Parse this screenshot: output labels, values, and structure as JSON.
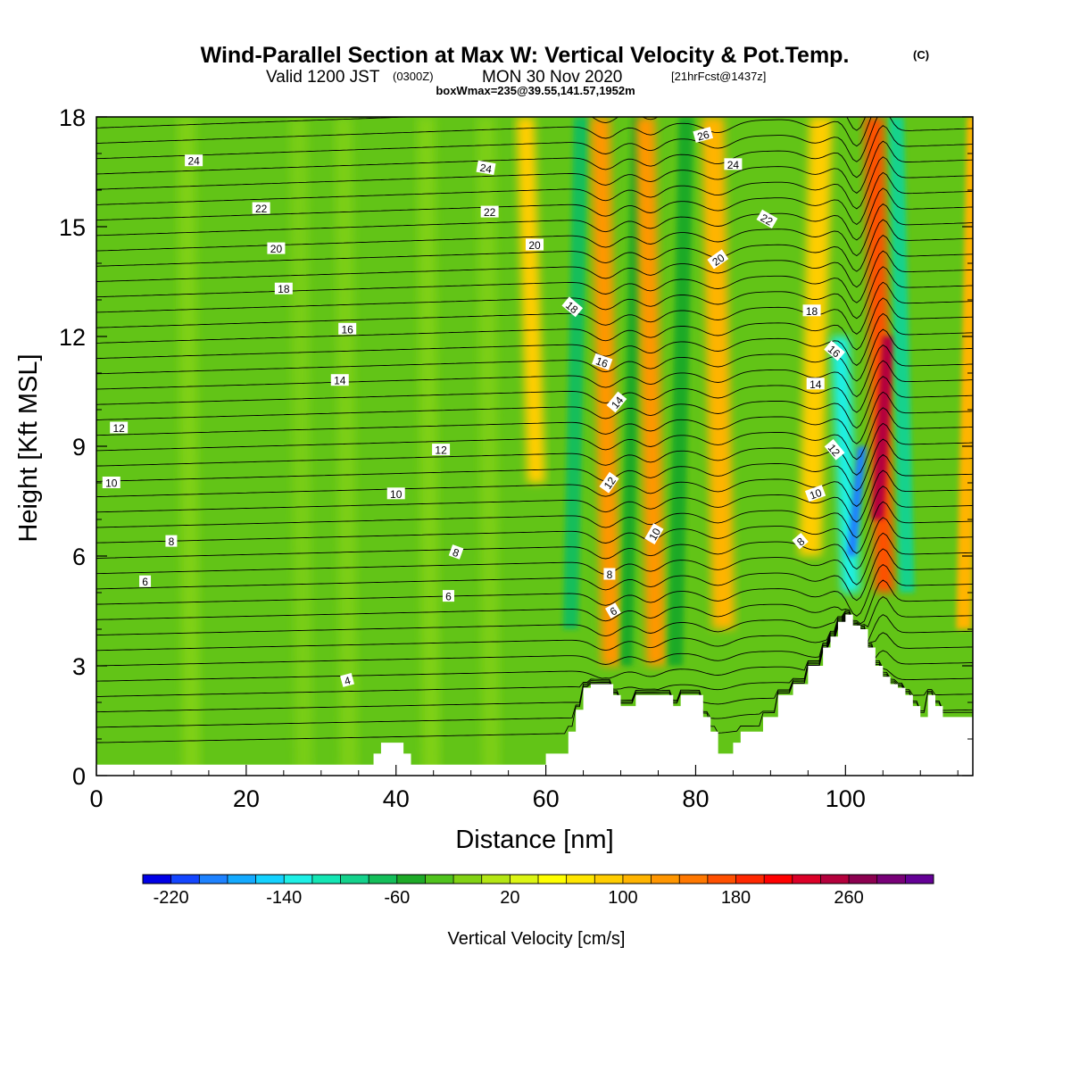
{
  "title": {
    "main": "Wind-Parallel Section at Max W: Vertical Velocity & Pot.Temp.",
    "copyright": "(C)",
    "valid_prefix": "Valid 1200 JST",
    "valid_utc": "(0300Z)",
    "valid_date": "MON 30 Nov 2020",
    "forecast_info": "[21hrFcst@1437z]",
    "boxwmax": "boxWmax=235@39.55,141.57,1952m"
  },
  "colors": {
    "terrain": "#ffffff",
    "contour": "#000000",
    "background_field": "#62c417"
  },
  "chart_data": {
    "type": "heatmap",
    "xlabel": "Distance [nm]",
    "ylabel": "Height [Kft MSL]",
    "xlim": [
      0,
      117
    ],
    "ylim": [
      0,
      18
    ],
    "x_ticks": [
      0,
      20,
      40,
      60,
      80,
      100
    ],
    "y_ticks": [
      0,
      3,
      6,
      9,
      12,
      15,
      18
    ],
    "grid": false,
    "colorbar": {
      "label": "Vertical Velocity [cm/s]",
      "placement": "bottom",
      "tick_labels": [
        "-220",
        "-140",
        "-60",
        "20",
        "100",
        "180",
        "260"
      ],
      "colors": [
        "#0000e6",
        "#1446ff",
        "#1e82ff",
        "#14aaff",
        "#14d2ff",
        "#1ef0e6",
        "#14e6b4",
        "#14d28c",
        "#14be5a",
        "#1eaa28",
        "#50c31e",
        "#82d214",
        "#b4e614",
        "#dcf514",
        "#ffff00",
        "#ffe600",
        "#ffcd00",
        "#ffb400",
        "#ff9600",
        "#ff7800",
        "#ff5000",
        "#ff2800",
        "#ff0000",
        "#dc0028",
        "#b4003c",
        "#8c0050",
        "#780078",
        "#640096"
      ]
    },
    "max_w_cm_s": 235,
    "max_w_location": [
      39.55,
      141.57
    ],
    "max_w_height_m": 1952,
    "theta_contour_labels": [
      4,
      6,
      8,
      10,
      12,
      14,
      16,
      18,
      20,
      22,
      24,
      26
    ],
    "terrain_profile": {
      "x": [
        0,
        35,
        37,
        38,
        41,
        42,
        59,
        60,
        63,
        64,
        65,
        66,
        67,
        69,
        70,
        71,
        72,
        74,
        75,
        77,
        78,
        81,
        82,
        83,
        84,
        85,
        86,
        89,
        91,
        93,
        95,
        97,
        98,
        99,
        100,
        101,
        102,
        103,
        104,
        105,
        106,
        107,
        108,
        109,
        110,
        111,
        112,
        113,
        117
      ],
      "y": [
        0.3,
        0.3,
        0.6,
        0.9,
        0.6,
        0.3,
        0.3,
        0.6,
        1.2,
        1.8,
        2.4,
        2.5,
        2.5,
        2.2,
        1.9,
        1.9,
        2.2,
        2.2,
        2.2,
        1.9,
        2.2,
        1.6,
        1.2,
        0.6,
        0.6,
        0.9,
        1.2,
        1.6,
        2.2,
        2.5,
        3.0,
        3.5,
        3.8,
        4.2,
        4.4,
        4.1,
        4.0,
        3.5,
        3.0,
        2.7,
        2.5,
        2.4,
        2.2,
        1.9,
        1.6,
        2.2,
        1.9,
        1.6,
        1.6
      ]
    },
    "w_features": [
      {
        "x": 58,
        "y0": 8,
        "y1": 18,
        "w": 1.2,
        "value": 70
      },
      {
        "x": 64,
        "y0": 4,
        "y1": 18,
        "w": 1.0,
        "value": -90
      },
      {
        "x": 68,
        "y0": 3,
        "y1": 18,
        "w": 1.3,
        "value": 110
      },
      {
        "x": 71.5,
        "y0": 3,
        "y1": 18,
        "w": 0.8,
        "value": -80
      },
      {
        "x": 74,
        "y0": 3,
        "y1": 18,
        "w": 1.3,
        "value": 110
      },
      {
        "x": 78,
        "y0": 3,
        "y1": 18,
        "w": 1.0,
        "value": -70
      },
      {
        "x": 83,
        "y0": 4,
        "y1": 18,
        "w": 1.5,
        "value": 90
      },
      {
        "x": 96,
        "y0": 6,
        "y1": 18,
        "w": 1.5,
        "value": 60
      },
      {
        "x": 100,
        "y0": 5,
        "y1": 12,
        "w": 1.2,
        "value": -150
      },
      {
        "x": 101.5,
        "y0": 6,
        "y1": 9,
        "w": 0.6,
        "value": -210
      },
      {
        "x": 104.5,
        "y0": 5,
        "y1": 18,
        "w": 1.3,
        "value": 150
      },
      {
        "x": 105,
        "y0": 7,
        "y1": 12,
        "w": 0.8,
        "value": 235
      },
      {
        "x": 107.5,
        "y0": 5,
        "y1": 18,
        "w": 1.0,
        "value": -110
      },
      {
        "x": 116.5,
        "y0": 4,
        "y1": 18,
        "w": 1.0,
        "value": 90
      }
    ],
    "theta_label_positions": [
      {
        "label": "24",
        "x": 13,
        "y": 16.8
      },
      {
        "label": "24",
        "x": 52,
        "y": 16.6,
        "rot": 10
      },
      {
        "label": "26",
        "x": 81,
        "y": 17.5,
        "rot": -15
      },
      {
        "label": "24",
        "x": 85,
        "y": 16.7
      },
      {
        "label": "22",
        "x": 22,
        "y": 15.5
      },
      {
        "label": "22",
        "x": 52.5,
        "y": 15.4
      },
      {
        "label": "22",
        "x": 89.5,
        "y": 15.2,
        "rot": 30
      },
      {
        "label": "20",
        "x": 24,
        "y": 14.4
      },
      {
        "label": "20",
        "x": 58.5,
        "y": 14.5
      },
      {
        "label": "20",
        "x": 83,
        "y": 14.1,
        "rot": -35
      },
      {
        "label": "18",
        "x": 25,
        "y": 13.3
      },
      {
        "label": "18",
        "x": 63.5,
        "y": 12.8,
        "rot": 40
      },
      {
        "label": "18",
        "x": 95.5,
        "y": 12.7
      },
      {
        "label": "16",
        "x": 33.5,
        "y": 12.2
      },
      {
        "label": "16",
        "x": 67.5,
        "y": 11.3,
        "rot": 20
      },
      {
        "label": "16",
        "x": 98.5,
        "y": 11.6,
        "rot": 40
      },
      {
        "label": "14",
        "x": 32.5,
        "y": 10.8
      },
      {
        "label": "14",
        "x": 69.5,
        "y": 10.2,
        "rot": -50
      },
      {
        "label": "14",
        "x": 96,
        "y": 10.7
      },
      {
        "label": "12",
        "x": 3,
        "y": 9.5
      },
      {
        "label": "12",
        "x": 46,
        "y": 8.9
      },
      {
        "label": "12",
        "x": 68.5,
        "y": 8.0,
        "rot": -55
      },
      {
        "label": "12",
        "x": 98.5,
        "y": 8.9,
        "rot": 50
      },
      {
        "label": "10",
        "x": 2,
        "y": 8.0
      },
      {
        "label": "10",
        "x": 40,
        "y": 7.7
      },
      {
        "label": "10",
        "x": 74.5,
        "y": 6.6,
        "rot": -60
      },
      {
        "label": "10",
        "x": 96,
        "y": 7.7,
        "rot": -20
      },
      {
        "label": "8",
        "x": 10,
        "y": 6.4
      },
      {
        "label": "8",
        "x": 48,
        "y": 6.1,
        "rot": 20
      },
      {
        "label": "8",
        "x": 68.5,
        "y": 5.5
      },
      {
        "label": "8",
        "x": 94,
        "y": 6.4,
        "rot": -40
      },
      {
        "label": "6",
        "x": 6.5,
        "y": 5.3
      },
      {
        "label": "6",
        "x": 47,
        "y": 4.9
      },
      {
        "label": "6",
        "x": 69,
        "y": 4.5,
        "rot": -30
      },
      {
        "label": "4",
        "x": 33.5,
        "y": 2.6,
        "rot": -15
      }
    ]
  }
}
